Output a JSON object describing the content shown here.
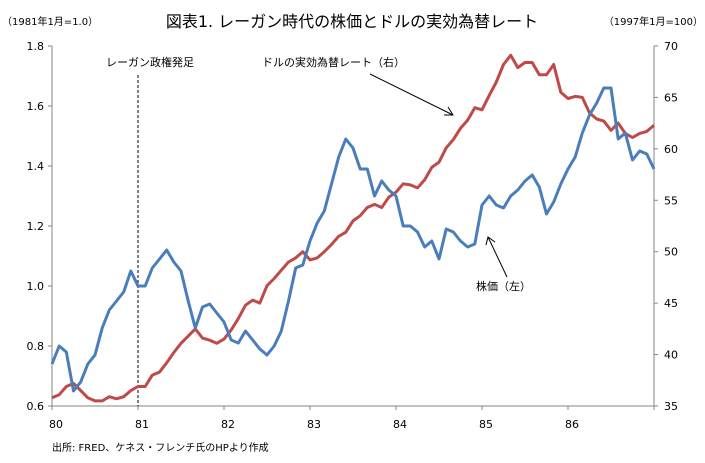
{
  "chart_data": {
    "type": "line",
    "title": "図表1. レーガン時代の株価とドルの実効為替レート",
    "left_axis_note": "（1981年1月=1.0）",
    "right_axis_note": "（1997年1月=100）",
    "source": "出所: FRED、ケネス・フレンチ氏のHPより作成",
    "x_tick_labels": [
      "80",
      "81",
      "82",
      "83",
      "84",
      "85",
      "86"
    ],
    "xlim": [
      1980,
      1987
    ],
    "ylim_left": [
      0.6,
      1.8
    ],
    "yticks_left": [
      "0.6",
      "0.8",
      "1.0",
      "1.2",
      "1.4",
      "1.6",
      "1.8"
    ],
    "ylim_right": [
      35,
      70
    ],
    "yticks_right": [
      "35",
      "40",
      "45",
      "50",
      "55",
      "60",
      "65",
      "70"
    ],
    "grid": false,
    "legend": "none (inline annotations)",
    "frequency": "monthly from Jan 1980",
    "series": [
      {
        "name": "株価（左）",
        "axis": "left",
        "color": "#4a7ebb",
        "values": [
          0.74,
          0.8,
          0.78,
          0.65,
          0.68,
          0.74,
          0.77,
          0.86,
          0.92,
          0.95,
          0.98,
          1.05,
          1.0,
          1.0,
          1.06,
          1.09,
          1.12,
          1.08,
          1.05,
          0.95,
          0.86,
          0.93,
          0.94,
          0.91,
          0.88,
          0.82,
          0.81,
          0.85,
          0.82,
          0.79,
          0.77,
          0.8,
          0.85,
          0.95,
          1.06,
          1.07,
          1.15,
          1.21,
          1.25,
          1.34,
          1.43,
          1.49,
          1.46,
          1.39,
          1.39,
          1.3,
          1.35,
          1.32,
          1.3,
          1.2,
          1.2,
          1.18,
          1.13,
          1.15,
          1.09,
          1.19,
          1.18,
          1.15,
          1.13,
          1.14,
          1.27,
          1.3,
          1.27,
          1.26,
          1.3,
          1.32,
          1.35,
          1.37,
          1.33,
          1.24,
          1.28,
          1.34,
          1.39,
          1.43,
          1.51,
          1.57,
          1.61,
          1.66,
          1.66,
          1.49,
          1.51,
          1.42,
          1.45,
          1.44,
          1.39
        ]
      },
      {
        "name": "ドルの実効為替レート（右）",
        "axis": "right",
        "color": "#be4b48",
        "values": [
          35.8,
          36.1,
          36.9,
          37.2,
          36.5,
          35.8,
          35.5,
          35.5,
          35.9,
          35.7,
          35.9,
          36.5,
          36.9,
          36.9,
          38.0,
          38.3,
          39.2,
          40.2,
          41.1,
          41.8,
          42.5,
          41.6,
          41.4,
          41.1,
          41.5,
          42.4,
          43.5,
          44.8,
          45.3,
          45.0,
          46.7,
          47.4,
          48.2,
          49.0,
          49.4,
          50.0,
          49.2,
          49.4,
          50.0,
          50.7,
          51.5,
          51.9,
          53.0,
          53.5,
          54.3,
          54.6,
          54.3,
          55.3,
          55.8,
          56.6,
          56.5,
          56.2,
          57.0,
          58.2,
          58.7,
          60.1,
          60.9,
          62.0,
          62.8,
          64.0,
          63.8,
          65.2,
          66.5,
          68.2,
          69.1,
          67.9,
          68.4,
          68.4,
          67.2,
          67.2,
          68.2,
          65.5,
          64.9,
          65.1,
          65.0,
          63.5,
          62.9,
          62.7,
          61.8,
          62.5,
          61.5,
          61.1,
          61.5,
          61.7,
          62.3
        ]
      }
    ],
    "annotations": [
      {
        "text": "レーガン政権発足",
        "type": "vertical-dashed-line",
        "x": 1981.0
      },
      {
        "text": "ドルの実効為替レート（右）",
        "type": "arrow-label",
        "points_to_series": "ドルの実効為替レート（右）",
        "at_x": 1984.7
      },
      {
        "text": "株価（左）",
        "type": "arrow-label",
        "points_to_series": "株価（左）",
        "at_x": 1985.0
      }
    ]
  }
}
